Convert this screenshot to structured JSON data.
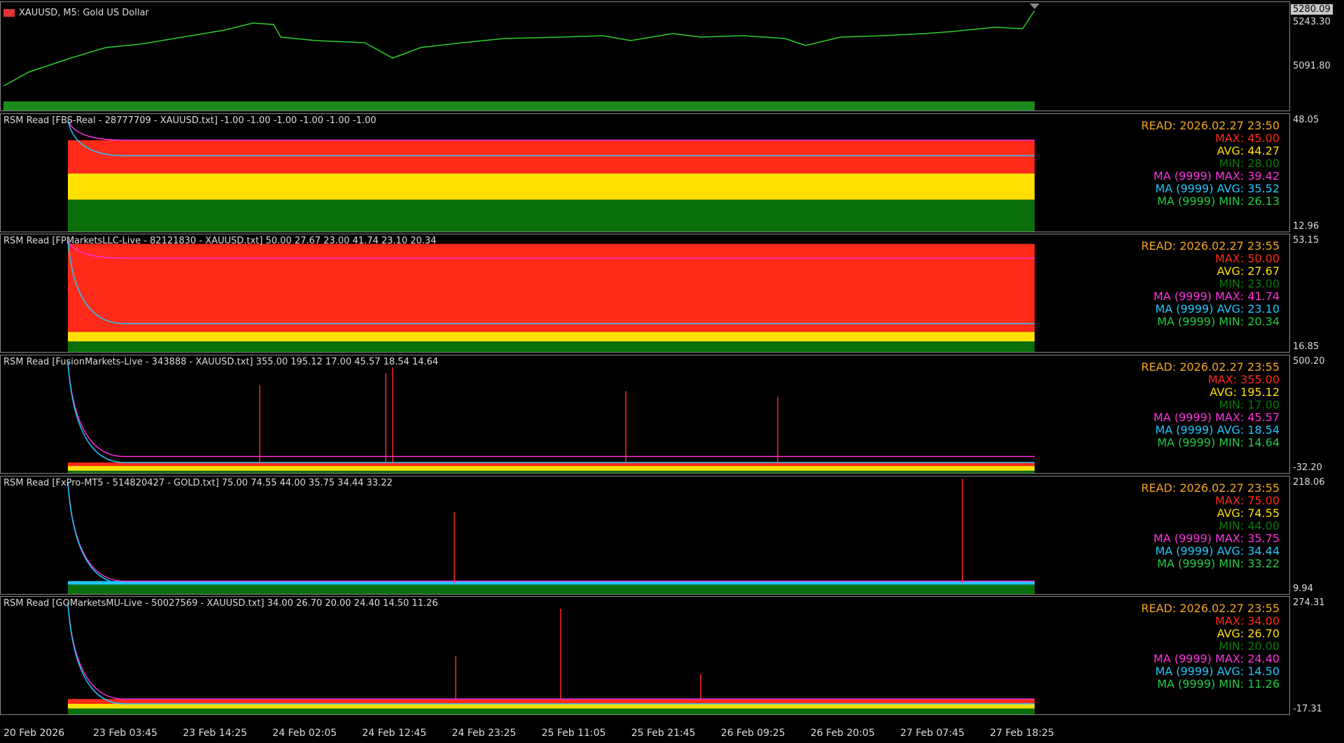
{
  "main_panel": {
    "symbol_title": "XAUUSD, M5:  Gold US Dollar",
    "price_label": "5280.09",
    "scale_labels": [
      "5243.30",
      "5091.80"
    ]
  },
  "indicator_panels": [
    {
      "header": "RSM Read [FBS-Real - 28777709 - XAUUSD.txt] -1.00 -1.00 -1.00 -1.00 -1.00 -1.00",
      "scale_top": "48.05",
      "scale_bottom": "12.96",
      "stats": [
        "READ: 2026.02.27 23:50",
        "MAX: 45.00",
        "AVG: 44.27",
        "MIN: 28.00",
        "MA (9999) MAX: 39.42",
        "MA (9999) AVG: 35.52",
        "MA (9999) MIN: 26.13"
      ]
    },
    {
      "header": "RSM Read [FPMarketsLLC-Live - 82121830 - XAUUSD.txt] 50.00 27.67 23.00 41.74 23.10 20.34",
      "scale_top": "53.15",
      "scale_bottom": "16.85",
      "stats": [
        "READ: 2026.02.27 23:55",
        "MAX: 50.00",
        "AVG: 27.67",
        "MIN: 23.00",
        "MA (9999) MAX: 41.74",
        "MA (9999) AVG: 23.10",
        "MA (9999) MIN: 20.34"
      ]
    },
    {
      "header": "RSM Read [FusionMarkets-Live - 343888 - XAUUSD.txt] 355.00 195.12 17.00 45.57 18.54 14.64",
      "scale_top": "500.20",
      "scale_bottom": "-32.20",
      "stats": [
        "READ: 2026.02.27 23:55",
        "MAX: 355.00",
        "AVG: 195.12",
        "MIN: 17.00",
        "MA (9999) MAX: 45.57",
        "MA (9999) AVG: 18.54",
        "MA (9999) MIN: 14.64"
      ]
    },
    {
      "header": "RSM Read [FxPro-MT5 - 514820427 - GOLD.txt] 75.00 74.55 44.00 35.75 34.44 33.22",
      "scale_top": "218.06",
      "scale_bottom": "9.94",
      "stats": [
        "READ: 2026.02.27 23:55",
        "MAX: 75.00",
        "AVG: 74.55",
        "MIN: 44.00",
        "MA (9999) MAX: 35.75",
        "MA (9999) AVG: 34.44",
        "MA (9999) MIN: 33.22"
      ]
    },
    {
      "header": "RSM Read [GOMarketsMU-Live - 50027569 - XAUUSD.txt] 34.00 26.70 20.00 24.40 14.50 11.26",
      "scale_top": "274.31",
      "scale_bottom": "-17.31",
      "stats": [
        "READ: 2026.02.27 23:55",
        "MAX: 34.00",
        "AVG: 26.70",
        "MIN: 20.00",
        "MA (9999) MAX: 24.40",
        "MA (9999) AVG: 14.50",
        "MA (9999) MIN: 11.26"
      ]
    }
  ],
  "time_axis": [
    "20 Feb 2026",
    "23 Feb 03:45",
    "23 Feb 14:25",
    "24 Feb 02:05",
    "24 Feb 12:45",
    "24 Feb 23:25",
    "25 Feb 11:05",
    "25 Feb 21:45",
    "26 Feb 09:25",
    "26 Feb 20:05",
    "27 Feb 07:45",
    "27 Feb 18:25"
  ]
}
